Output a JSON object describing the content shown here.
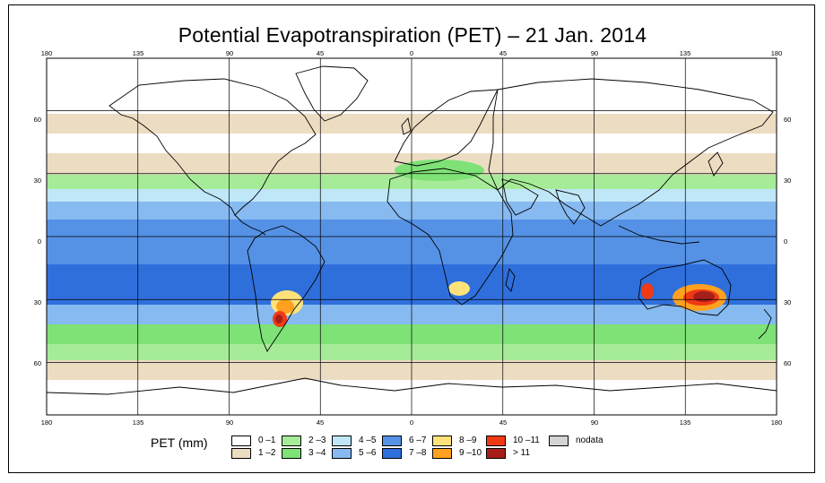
{
  "title": "Potential Evapotranspiration (PET) – 21 Jan. 2014",
  "axes": {
    "top_lon": [
      "180",
      "135",
      "90",
      "45",
      "0",
      "45",
      "90",
      "135",
      "180"
    ],
    "bottom_lon": [
      "180",
      "135",
      "90",
      "45",
      "0",
      "45",
      "90",
      "135",
      "180"
    ],
    "left_lat": [
      "60",
      "30",
      "0",
      "30",
      "60"
    ],
    "right_lat": [
      "60",
      "30",
      "0",
      "30",
      "60"
    ]
  },
  "map_region": {
    "lon_range": [
      -180,
      180
    ],
    "lat_range": [
      -85,
      85
    ],
    "gridlines_lon": [
      -135,
      -90,
      -45,
      0,
      45,
      90,
      135
    ],
    "gridlines_lat": [
      60,
      30,
      0,
      -30,
      -60
    ]
  },
  "legend": {
    "title": "PET (mm)",
    "items": [
      {
        "label": "0 –1",
        "color": "#ffffff"
      },
      {
        "label": "1 –2",
        "color": "#ecdcc2"
      },
      {
        "label": "2 –3",
        "color": "#a6ec98"
      },
      {
        "label": "3 –4",
        "color": "#7ee276"
      },
      {
        "label": "4 –5",
        "color": "#bfe7f7"
      },
      {
        "label": "5 –6",
        "color": "#86baf0"
      },
      {
        "label": "6 –7",
        "color": "#5592e6"
      },
      {
        "label": "7 –8",
        "color": "#2f6fdc"
      },
      {
        "label": "8 –9",
        "color": "#ffe27a"
      },
      {
        "label": "9 –10",
        "color": "#ffa11f"
      },
      {
        "label": "10 –11",
        "color": "#ef3a14"
      },
      {
        "label": "> 11",
        "color": "#a61e1a"
      },
      {
        "label": "nodata",
        "color": "#d4d4d4"
      }
    ]
  }
}
